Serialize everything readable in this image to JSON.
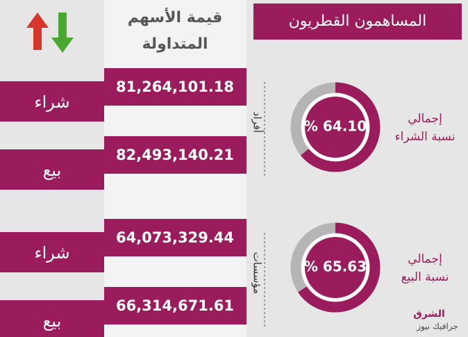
{
  "header": {
    "title": "المساهمون القطريون",
    "column_title_lines": [
      "قيمة الأسهم",
      "المتداولة"
    ]
  },
  "groups": [
    {
      "label": "أفراد",
      "rows": [
        {
          "label": "شراء",
          "value": "81,264,101.18"
        },
        {
          "label": "بيع",
          "value": "82,493,140.21"
        }
      ]
    },
    {
      "label": "مؤسسات",
      "rows": [
        {
          "label": "شراء",
          "value": "64,073,329.44"
        },
        {
          "label": "بيع",
          "value": "66,314,671.61"
        }
      ]
    }
  ],
  "donuts": [
    {
      "title_lines": [
        "إجمالي",
        "نسبة الشراء"
      ],
      "value": 64.1,
      "value_label": "% 64.10"
    },
    {
      "title_lines": [
        "إجمالي",
        "نسبة البيع"
      ],
      "value": 65.63,
      "value_label": "% 65.63"
    }
  ],
  "logo": {
    "name": "الشرق",
    "subtitle": "جرافيك نيوز"
  }
}
